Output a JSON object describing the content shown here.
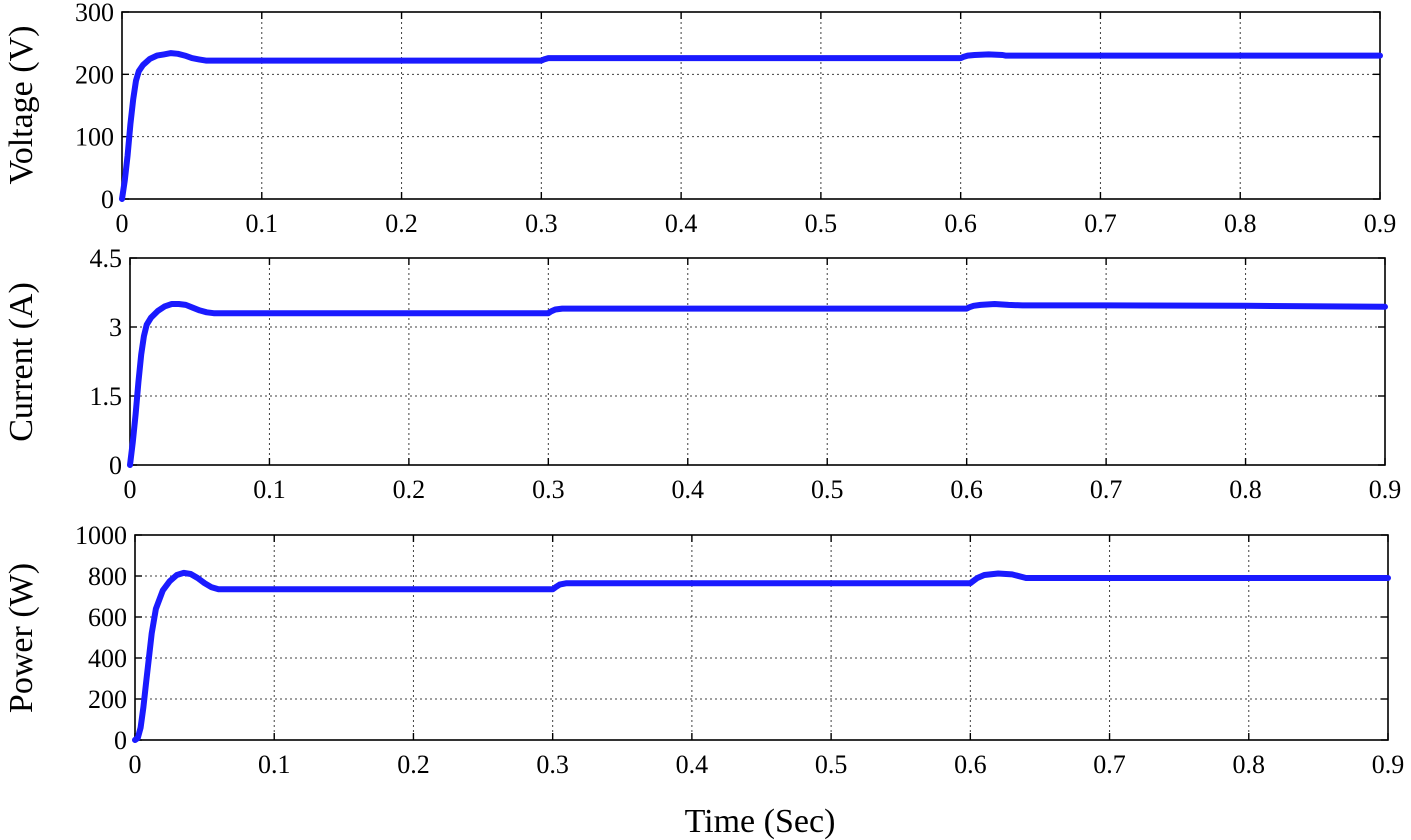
{
  "figure": {
    "xlabel": "Time (Sec)"
  },
  "chart_data": [
    {
      "type": "line",
      "ylabel": "Voltage (V)",
      "xlim": [
        0,
        0.9
      ],
      "ylim": [
        0,
        300
      ],
      "grid": true,
      "xticks": [
        "0",
        "0.1",
        "0.2",
        "0.3",
        "0.4",
        "0.5",
        "0.6",
        "0.7",
        "0.8",
        "0.9"
      ],
      "yticks": [
        "0",
        "100",
        "200",
        "300"
      ],
      "series": [
        {
          "color": "#1a1aff",
          "x": [
            0,
            0.002,
            0.004,
            0.006,
            0.008,
            0.01,
            0.012,
            0.015,
            0.02,
            0.025,
            0.03,
            0.035,
            0.04,
            0.045,
            0.05,
            0.055,
            0.06,
            0.07,
            0.1,
            0.2,
            0.3,
            0.302,
            0.305,
            0.31,
            0.35,
            0.4,
            0.5,
            0.6,
            0.602,
            0.605,
            0.61,
            0.62,
            0.63,
            0.632,
            0.7,
            0.8,
            0.9
          ],
          "y": [
            0,
            30,
            70,
            120,
            160,
            190,
            205,
            215,
            225,
            230,
            232,
            234,
            233,
            230,
            226,
            224,
            222,
            222,
            222,
            222,
            222,
            224,
            226,
            226,
            226,
            226,
            226,
            226,
            228,
            230,
            231,
            232,
            231,
            230,
            230,
            230,
            230
          ]
        }
      ]
    },
    {
      "type": "line",
      "ylabel": "Current (A)",
      "xlim": [
        0,
        0.9
      ],
      "ylim": [
        0,
        4.5
      ],
      "grid": true,
      "xticks": [
        "0",
        "0.1",
        "0.2",
        "0.3",
        "0.4",
        "0.5",
        "0.6",
        "0.7",
        "0.8",
        "0.9"
      ],
      "yticks": [
        "0",
        "1.5",
        "3",
        "4.5"
      ],
      "series": [
        {
          "color": "#1a1aff",
          "x": [
            0,
            0.002,
            0.004,
            0.006,
            0.008,
            0.01,
            0.012,
            0.015,
            0.02,
            0.025,
            0.03,
            0.035,
            0.04,
            0.045,
            0.05,
            0.055,
            0.06,
            0.07,
            0.1,
            0.2,
            0.3,
            0.302,
            0.305,
            0.31,
            0.35,
            0.4,
            0.5,
            0.6,
            0.602,
            0.605,
            0.61,
            0.62,
            0.63,
            0.64,
            0.7,
            0.8,
            0.9
          ],
          "y": [
            0,
            0.5,
            1.1,
            1.8,
            2.4,
            2.8,
            3.05,
            3.2,
            3.35,
            3.45,
            3.5,
            3.5,
            3.48,
            3.42,
            3.36,
            3.32,
            3.3,
            3.3,
            3.3,
            3.3,
            3.3,
            3.34,
            3.38,
            3.4,
            3.4,
            3.4,
            3.4,
            3.4,
            3.43,
            3.46,
            3.48,
            3.5,
            3.48,
            3.47,
            3.47,
            3.46,
            3.44
          ]
        }
      ]
    },
    {
      "type": "line",
      "ylabel": "Power (W)",
      "xlim": [
        0,
        0.9
      ],
      "ylim": [
        0,
        1000
      ],
      "grid": true,
      "xticks": [
        "0",
        "0.1",
        "0.2",
        "0.3",
        "0.4",
        "0.5",
        "0.6",
        "0.7",
        "0.8",
        "0.9"
      ],
      "yticks": [
        "0",
        "200",
        "400",
        "600",
        "800",
        "1000"
      ],
      "series": [
        {
          "color": "#1a1aff",
          "x": [
            0,
            0.002,
            0.004,
            0.006,
            0.008,
            0.01,
            0.012,
            0.015,
            0.02,
            0.025,
            0.03,
            0.035,
            0.04,
            0.045,
            0.05,
            0.055,
            0.06,
            0.07,
            0.1,
            0.2,
            0.3,
            0.302,
            0.305,
            0.31,
            0.35,
            0.4,
            0.5,
            0.6,
            0.602,
            0.605,
            0.61,
            0.62,
            0.63,
            0.64,
            0.7,
            0.8,
            0.9
          ],
          "y": [
            0,
            10,
            60,
            160,
            280,
            400,
            520,
            640,
            730,
            775,
            805,
            815,
            810,
            790,
            765,
            745,
            735,
            735,
            735,
            735,
            735,
            745,
            758,
            765,
            765,
            765,
            765,
            765,
            775,
            790,
            805,
            812,
            808,
            790,
            790,
            790,
            790
          ]
        }
      ]
    }
  ]
}
